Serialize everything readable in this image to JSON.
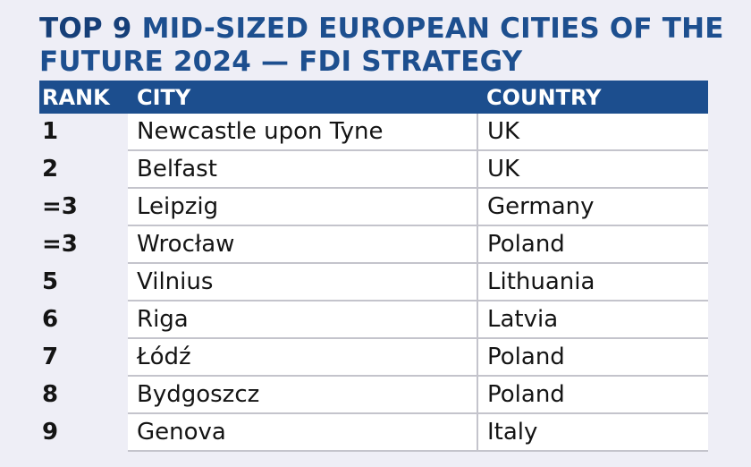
{
  "title": {
    "lead": "TOP 9",
    "rest_line1": " MID-SIZED EUROPEAN CITIES OF THE",
    "line2": "FUTURE 2024 — FDI STRATEGY"
  },
  "colors": {
    "header_bg": "#1c4e8e",
    "title_color": "#1d4f8f",
    "page_bg": "#eeeef6"
  },
  "chart_data": {
    "type": "table",
    "title": "TOP 9 MID-SIZED EUROPEAN CITIES OF THE FUTURE 2024 — FDI STRATEGY",
    "columns": [
      "RANK",
      "CITY",
      "COUNTRY"
    ],
    "rows": [
      {
        "rank": "1",
        "city": "Newcastle upon Tyne",
        "country": "UK"
      },
      {
        "rank": "2",
        "city": "Belfast",
        "country": "UK"
      },
      {
        "rank": "=3",
        "city": "Leipzig",
        "country": "Germany"
      },
      {
        "rank": "=3",
        "city": "Wrocław",
        "country": "Poland"
      },
      {
        "rank": "5",
        "city": "Vilnius",
        "country": "Lithuania"
      },
      {
        "rank": "6",
        "city": "Riga",
        "country": "Latvia"
      },
      {
        "rank": "7",
        "city": "Łódź",
        "country": "Poland"
      },
      {
        "rank": "8",
        "city": "Bydgoszcz",
        "country": "Poland"
      },
      {
        "rank": "9",
        "city": "Genova",
        "country": "Italy"
      }
    ]
  }
}
